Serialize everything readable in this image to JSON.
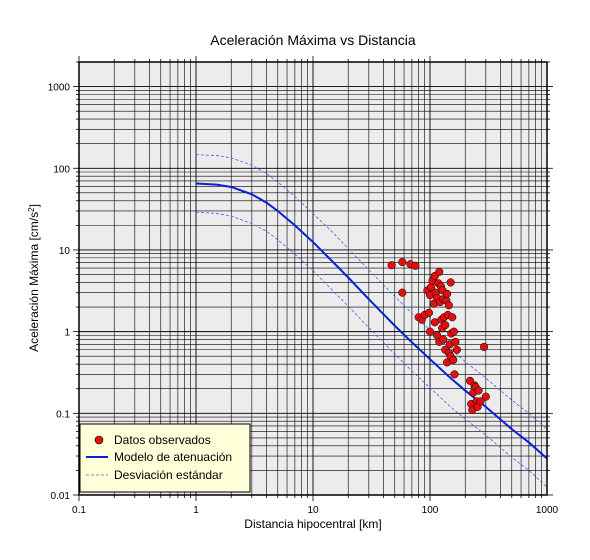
{
  "chart_data": {
    "type": "scatter",
    "title": "Aceleración Máxima vs Distancia",
    "xlabel": "Distancia hipocentral [km]",
    "ylabel_main": "Aceleración Máxima [cm/s",
    "ylabel_sup": "2",
    "ylabel_end": "]",
    "xscale": "log",
    "yscale": "log",
    "xlim": [
      0.1,
      1000
    ],
    "ylim": [
      0.01,
      2000
    ],
    "grid": true,
    "legend_placement": "bottom-left",
    "x_ticks": [
      {
        "value": 0.1,
        "label": "0.1"
      },
      {
        "value": 1,
        "label": "1"
      },
      {
        "value": 10,
        "label": "10"
      },
      {
        "value": 100,
        "label": "100"
      },
      {
        "value": 1000,
        "label": "1000"
      }
    ],
    "y_ticks": [
      {
        "value": 0.01,
        "label": "0.01"
      },
      {
        "value": 0.1,
        "label": "0.1"
      },
      {
        "value": 1,
        "label": "1"
      },
      {
        "value": 10,
        "label": "10"
      },
      {
        "value": 100,
        "label": "100"
      },
      {
        "value": 1000,
        "label": "1000"
      }
    ],
    "colors": {
      "observed": "#e01010",
      "model": "#0a1fd6",
      "deviation": "#4a5cf0",
      "plot_bg": "#ececec",
      "legend_bg": "#ffffd8"
    },
    "series": [
      {
        "name": "Datos observados",
        "kind": "points",
        "x": [
          47,
          58,
          58,
          68,
          75,
          80,
          85,
          90,
          95,
          98,
          100,
          100,
          102,
          105,
          108,
          110,
          110,
          112,
          115,
          115,
          118,
          120,
          120,
          122,
          124,
          125,
          127,
          128,
          130,
          130,
          132,
          135,
          135,
          138,
          140,
          140,
          142,
          145,
          145,
          148,
          150,
          150,
          152,
          155,
          158,
          160,
          162,
          165,
          170,
          220,
          225,
          230,
          235,
          240,
          245,
          250,
          255,
          260,
          270,
          290,
          300
        ],
        "y": [
          6.5,
          7.1,
          3.0,
          6.7,
          6.4,
          1.5,
          1.4,
          1.6,
          3.2,
          1.7,
          1.0,
          2.8,
          3.5,
          4.2,
          2.2,
          4.8,
          1.3,
          3.0,
          2.6,
          0.9,
          3.9,
          5.4,
          0.75,
          2.3,
          3.6,
          1.4,
          1.1,
          3.2,
          2.5,
          0.8,
          1.5,
          1.2,
          0.6,
          2.4,
          2.9,
          0.42,
          1.6,
          0.55,
          2.1,
          0.7,
          4.0,
          0.5,
          0.95,
          1.5,
          0.45,
          1.0,
          0.3,
          0.75,
          0.6,
          0.25,
          0.13,
          0.11,
          0.18,
          0.22,
          0.21,
          0.14,
          0.12,
          0.19,
          0.14,
          0.65,
          0.16
        ]
      },
      {
        "name": "Modelo de atenuación",
        "kind": "line",
        "x": [
          1,
          1.5,
          2,
          3,
          4,
          5,
          7,
          10,
          15,
          20,
          30,
          50,
          70,
          100,
          150,
          200,
          300,
          500,
          700,
          1000
        ],
        "y": [
          65,
          63,
          59,
          48,
          38,
          30,
          20,
          12.5,
          7.0,
          4.6,
          2.5,
          1.18,
          0.74,
          0.46,
          0.27,
          0.19,
          0.12,
          0.064,
          0.044,
          0.028
        ]
      },
      {
        "name": "Desviación estándar",
        "kind": "dashed",
        "x": [
          1,
          1.5,
          2,
          3,
          4,
          5,
          7,
          10,
          15,
          20,
          30,
          50,
          70,
          100,
          150,
          200,
          300,
          500,
          700,
          1000
        ],
        "y": [
          147,
          143,
          134,
          109,
          86,
          68,
          45,
          28,
          16,
          10.4,
          5.7,
          2.7,
          1.68,
          1.04,
          0.61,
          0.43,
          0.27,
          0.145,
          0.1,
          0.064
        ],
        "y_lower": [
          29,
          28,
          26,
          21,
          17,
          13.3,
          8.9,
          5.6,
          3.1,
          2.05,
          1.12,
          0.53,
          0.33,
          0.205,
          0.12,
          0.085,
          0.054,
          0.029,
          0.02,
          0.0125
        ]
      }
    ]
  }
}
